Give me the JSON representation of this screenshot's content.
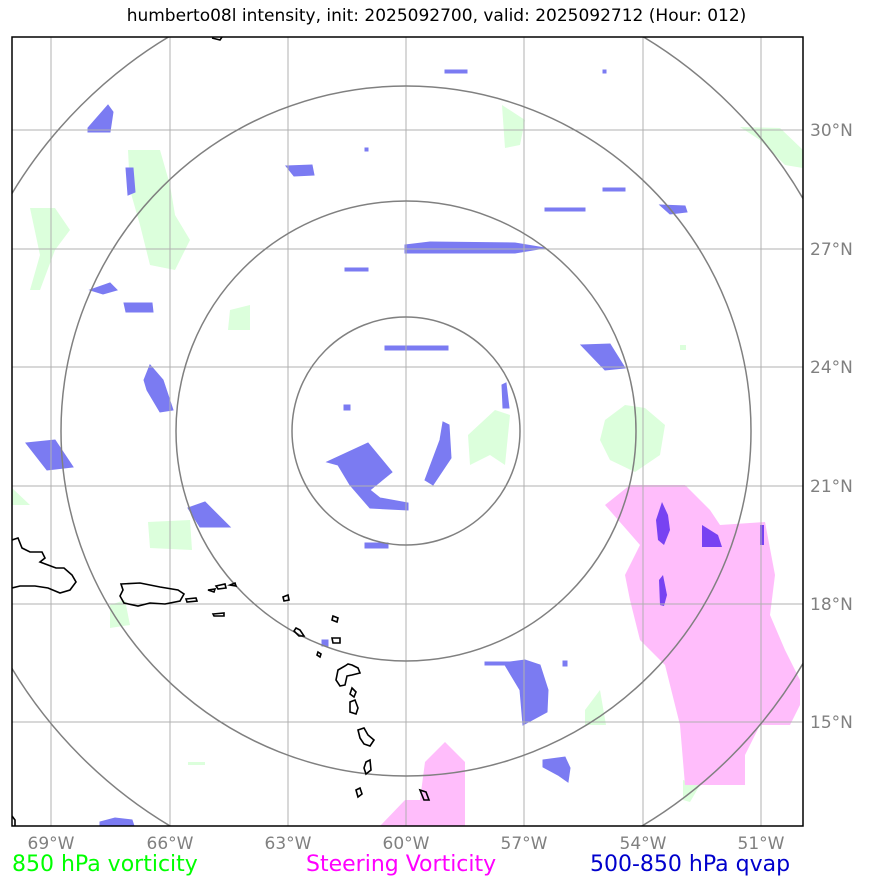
{
  "header": {
    "title": "humberto08l intensity, init: 2025092700, valid: 2025092712 (Hour: 012)"
  },
  "axes": {
    "lon_ticks": [
      "69°W",
      "66°W",
      "63°W",
      "60°W",
      "57°W",
      "54°W",
      "51°W"
    ],
    "lat_ticks": [
      "30°N",
      "27°N",
      "24°N",
      "21°N",
      "18°N",
      "15°N"
    ]
  },
  "legend": {
    "vorticity_850": "850 hPa vorticity",
    "steering_vorticity": "Steering Vorticity",
    "qvap_500_850": "500-850 hPa qvap"
  },
  "colors": {
    "vorticity_850": "#00ff00",
    "steering_vorticity": "#ff00ff",
    "qvap_500_850": "#0000cc",
    "qvap_fill": "#7b7bf2",
    "steering_fill": "#ffbdfb",
    "vort_fill": "#dcffdc",
    "range_rings": "#808080",
    "grid": "#b0b0b0"
  }
}
